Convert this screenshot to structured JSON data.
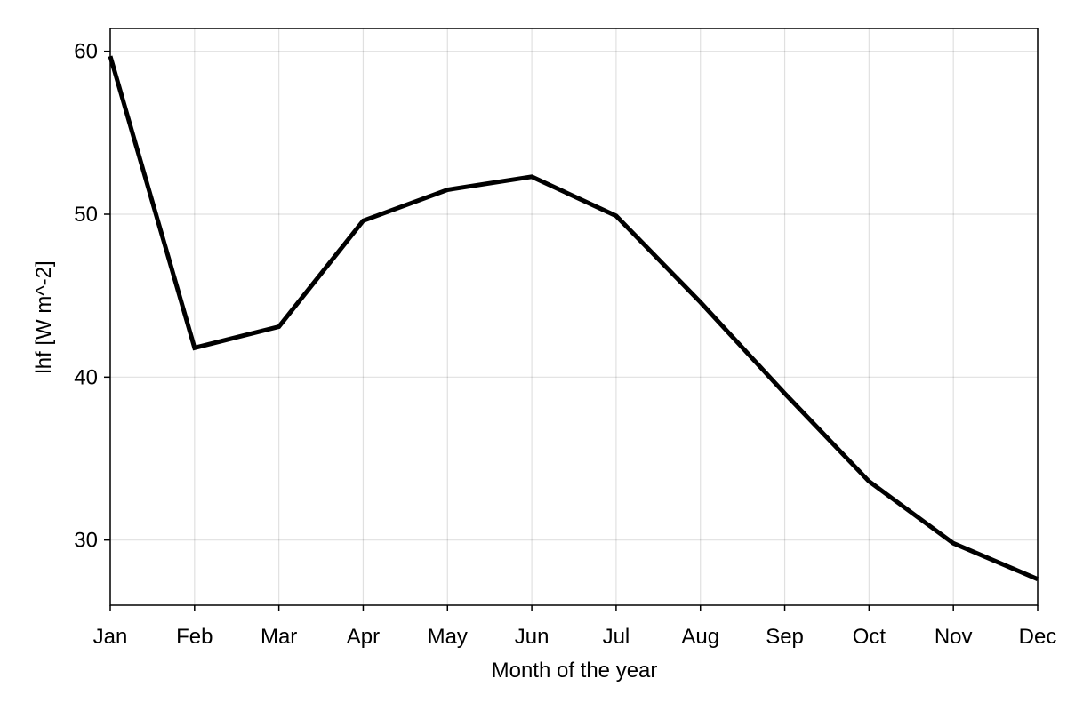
{
  "chart_data": {
    "type": "line",
    "title": "",
    "xlabel": "Month of the year",
    "ylabel": "lhf [W m^-2]",
    "categories": [
      "Jan",
      "Feb",
      "Mar",
      "Apr",
      "May",
      "Jun",
      "Jul",
      "Aug",
      "Sep",
      "Oct",
      "Nov",
      "Dec"
    ],
    "series": [
      {
        "values": [
          59.7,
          41.8,
          43.1,
          49.6,
          51.5,
          52.3,
          49.9,
          44.6,
          39.0,
          33.6,
          29.8,
          27.6
        ],
        "color": "#000000"
      }
    ],
    "yticks": [
      30,
      40,
      50,
      60
    ],
    "ylim": [
      26.0,
      61.4
    ],
    "grid": true,
    "legend": "none"
  }
}
